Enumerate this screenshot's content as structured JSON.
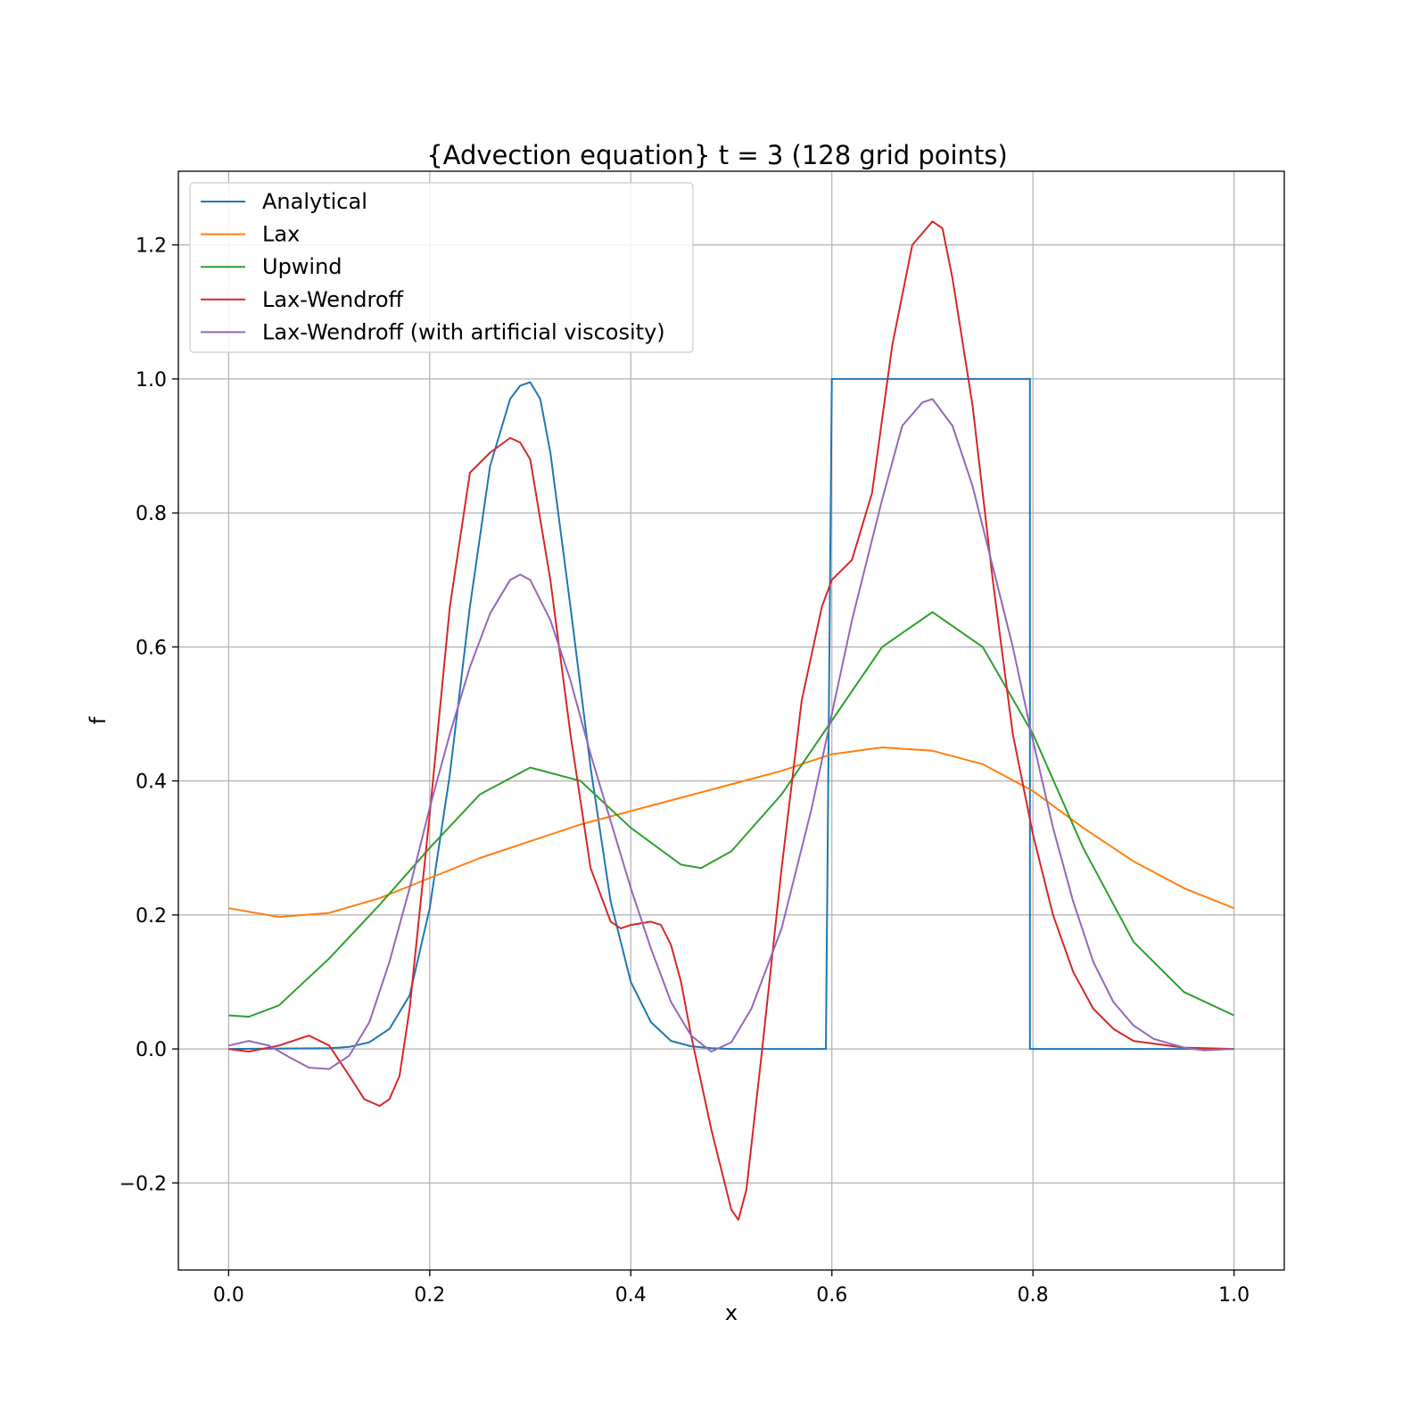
{
  "chart_data": {
    "type": "line",
    "title": "{Advection equation} t = 3 (128 grid points)",
    "xlabel": "x",
    "ylabel": "f",
    "xlim": [
      -0.05,
      1.05
    ],
    "ylim": [
      -0.33,
      1.31
    ],
    "xticks": [
      0.0,
      0.2,
      0.4,
      0.6,
      0.8,
      1.0
    ],
    "xtick_labels": [
      "0.0",
      "0.2",
      "0.4",
      "0.6",
      "0.8",
      "1.0"
    ],
    "yticks": [
      -0.2,
      0.0,
      0.2,
      0.4,
      0.6,
      0.8,
      1.0,
      1.2
    ],
    "ytick_labels": [
      "−0.2",
      "0.0",
      "0.2",
      "0.4",
      "0.6",
      "0.8",
      "1.0",
      "1.2"
    ],
    "grid": true,
    "legend_position": "upper-left",
    "series": [
      {
        "name": "Analytical",
        "color": "#1f77b4",
        "x": [
          0.0,
          0.1,
          0.12,
          0.14,
          0.16,
          0.18,
          0.2,
          0.22,
          0.24,
          0.26,
          0.28,
          0.29,
          0.3,
          0.31,
          0.32,
          0.34,
          0.36,
          0.38,
          0.4,
          0.42,
          0.44,
          0.46,
          0.48,
          0.5,
          0.594,
          0.6,
          0.6,
          0.797,
          0.797,
          0.805,
          1.0
        ],
        "values": [
          0.0,
          0.001,
          0.003,
          0.01,
          0.03,
          0.08,
          0.21,
          0.41,
          0.66,
          0.87,
          0.97,
          0.99,
          0.995,
          0.97,
          0.89,
          0.66,
          0.42,
          0.22,
          0.1,
          0.04,
          0.012,
          0.004,
          0.001,
          0.0,
          0.0,
          1.0,
          1.0,
          1.0,
          0.0,
          0.0,
          0.0
        ]
      },
      {
        "name": "Lax",
        "color": "#ff7f0e",
        "x": [
          0.0,
          0.05,
          0.1,
          0.15,
          0.2,
          0.25,
          0.3,
          0.35,
          0.4,
          0.45,
          0.5,
          0.55,
          0.6,
          0.65,
          0.7,
          0.75,
          0.8,
          0.85,
          0.9,
          0.95,
          1.0
        ],
        "values": [
          0.21,
          0.197,
          0.203,
          0.225,
          0.255,
          0.285,
          0.31,
          0.335,
          0.355,
          0.375,
          0.395,
          0.415,
          0.44,
          0.45,
          0.445,
          0.425,
          0.385,
          0.33,
          0.28,
          0.24,
          0.21
        ]
      },
      {
        "name": "Upwind",
        "color": "#2ca02c",
        "x": [
          0.0,
          0.02,
          0.05,
          0.1,
          0.15,
          0.2,
          0.25,
          0.3,
          0.35,
          0.4,
          0.45,
          0.47,
          0.5,
          0.55,
          0.6,
          0.65,
          0.7,
          0.75,
          0.8,
          0.85,
          0.9,
          0.95,
          1.0
        ],
        "values": [
          0.05,
          0.048,
          0.065,
          0.135,
          0.215,
          0.3,
          0.38,
          0.42,
          0.4,
          0.33,
          0.275,
          0.27,
          0.295,
          0.38,
          0.49,
          0.6,
          0.652,
          0.6,
          0.47,
          0.3,
          0.16,
          0.085,
          0.05
        ]
      },
      {
        "name": "Lax-Wendroff",
        "color": "#d62728",
        "x": [
          0.0,
          0.02,
          0.05,
          0.08,
          0.1,
          0.12,
          0.135,
          0.15,
          0.16,
          0.17,
          0.18,
          0.2,
          0.22,
          0.24,
          0.26,
          0.28,
          0.29,
          0.3,
          0.32,
          0.34,
          0.36,
          0.38,
          0.39,
          0.4,
          0.42,
          0.43,
          0.44,
          0.45,
          0.46,
          0.48,
          0.5,
          0.507,
          0.515,
          0.53,
          0.55,
          0.57,
          0.59,
          0.6,
          0.62,
          0.64,
          0.66,
          0.68,
          0.7,
          0.71,
          0.72,
          0.74,
          0.76,
          0.78,
          0.8,
          0.82,
          0.84,
          0.86,
          0.88,
          0.9,
          0.95,
          1.0
        ],
        "values": [
          0.0,
          -0.004,
          0.005,
          0.02,
          0.005,
          -0.04,
          -0.075,
          -0.085,
          -0.075,
          -0.04,
          0.06,
          0.35,
          0.66,
          0.86,
          0.89,
          0.912,
          0.905,
          0.88,
          0.7,
          0.47,
          0.27,
          0.19,
          0.18,
          0.185,
          0.19,
          0.185,
          0.155,
          0.1,
          0.02,
          -0.12,
          -0.24,
          -0.255,
          -0.21,
          -0.01,
          0.27,
          0.52,
          0.66,
          0.7,
          0.73,
          0.83,
          1.05,
          1.2,
          1.235,
          1.225,
          1.15,
          0.96,
          0.7,
          0.47,
          0.32,
          0.2,
          0.115,
          0.06,
          0.03,
          0.012,
          0.002,
          0.0
        ]
      },
      {
        "name": "Lax-Wendroff (with artificial viscosity)",
        "color": "#9467bd",
        "x": [
          0.0,
          0.02,
          0.04,
          0.06,
          0.08,
          0.1,
          0.12,
          0.14,
          0.16,
          0.18,
          0.2,
          0.22,
          0.24,
          0.26,
          0.28,
          0.29,
          0.3,
          0.32,
          0.34,
          0.36,
          0.38,
          0.4,
          0.42,
          0.44,
          0.46,
          0.48,
          0.5,
          0.52,
          0.55,
          0.58,
          0.6,
          0.62,
          0.65,
          0.67,
          0.69,
          0.7,
          0.72,
          0.74,
          0.76,
          0.78,
          0.8,
          0.82,
          0.84,
          0.86,
          0.88,
          0.9,
          0.92,
          0.95,
          0.97,
          1.0
        ],
        "values": [
          0.005,
          0.012,
          0.005,
          -0.012,
          -0.028,
          -0.03,
          -0.01,
          0.04,
          0.13,
          0.24,
          0.36,
          0.47,
          0.57,
          0.65,
          0.7,
          0.708,
          0.7,
          0.64,
          0.55,
          0.44,
          0.34,
          0.24,
          0.15,
          0.07,
          0.02,
          -0.004,
          0.01,
          0.06,
          0.18,
          0.36,
          0.5,
          0.64,
          0.82,
          0.93,
          0.965,
          0.97,
          0.93,
          0.84,
          0.72,
          0.6,
          0.46,
          0.33,
          0.22,
          0.13,
          0.07,
          0.035,
          0.015,
          0.002,
          -0.002,
          0.0
        ]
      }
    ]
  }
}
